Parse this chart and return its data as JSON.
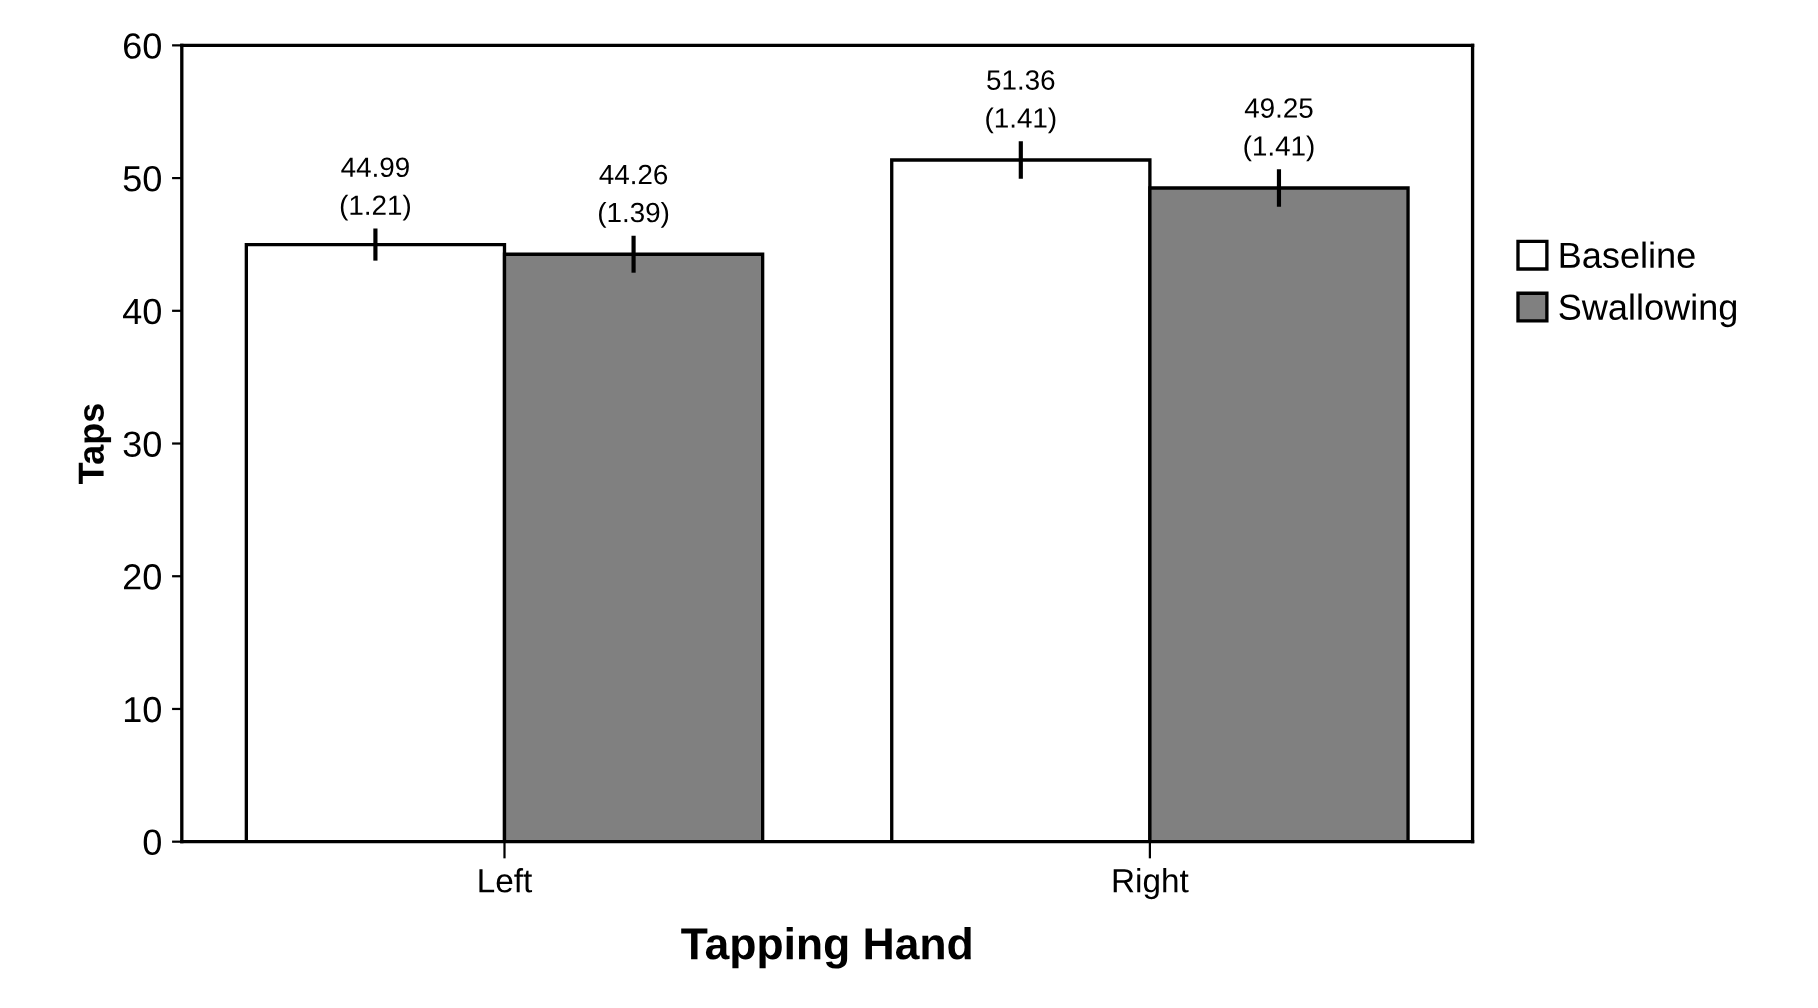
{
  "chart_data": {
    "type": "bar",
    "xlabel": "Tapping Hand",
    "ylabel": "Taps",
    "categories": [
      "Left",
      "Right"
    ],
    "series": [
      {
        "name": "Baseline",
        "color": "#ffffff",
        "values": [
          44.99,
          51.36
        ],
        "errors": [
          1.21,
          1.41
        ],
        "value_labels": [
          "44.99\n(1.21)",
          "51.36\n(1.41)"
        ]
      },
      {
        "name": "Swallowing",
        "color": "#808080",
        "values": [
          44.26,
          49.25
        ],
        "errors": [
          1.39,
          1.41
        ],
        "value_labels": [
          "44.26\n(1.39)",
          "49.25\n(1.41)"
        ]
      }
    ],
    "ylim": [
      0,
      60
    ],
    "yticks": [
      0,
      10,
      20,
      30,
      40,
      50,
      60
    ],
    "grid": false,
    "legend": "right"
  }
}
